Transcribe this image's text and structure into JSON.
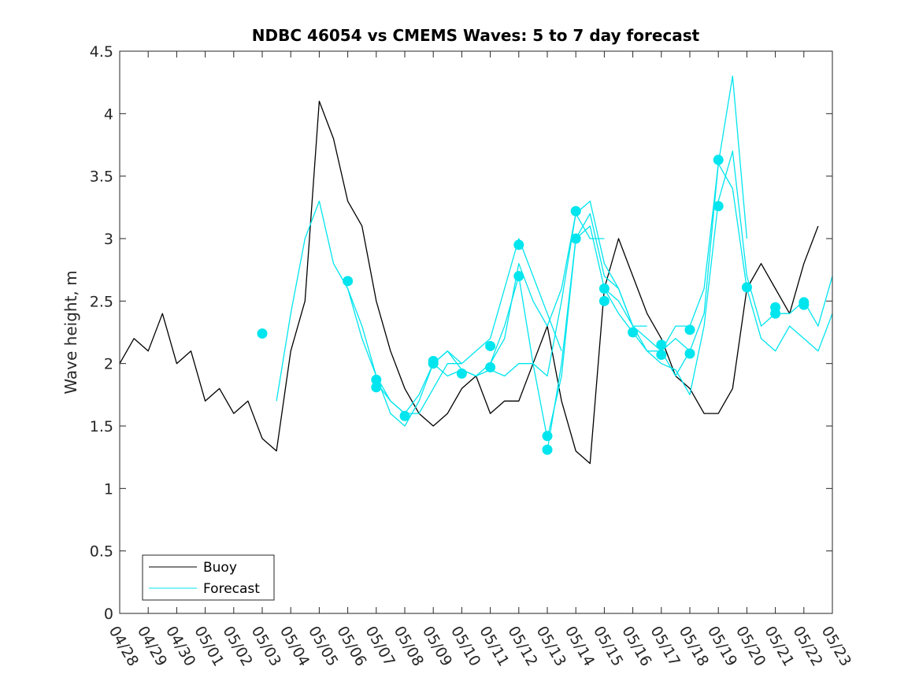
{
  "chart_data": {
    "type": "line",
    "title": "NDBC 46054 vs CMEMS Waves: 5 to 7 day forecast",
    "xlabel": "",
    "ylabel": "Wave height, m",
    "ylim": [
      0,
      4.5
    ],
    "yticks": [
      0,
      0.5,
      1,
      1.5,
      2,
      2.5,
      3,
      3.5,
      4,
      4.5
    ],
    "ytick_labels": [
      "0",
      "0.5",
      "1",
      "1.5",
      "2",
      "2.5",
      "3",
      "3.5",
      "4",
      "4.5"
    ],
    "xlim": [
      "04/28",
      "05/23"
    ],
    "xtick_labels": [
      "04/28",
      "04/29",
      "04/30",
      "05/01",
      "05/02",
      "05/03",
      "05/04",
      "05/05",
      "05/06",
      "05/07",
      "05/08",
      "05/09",
      "05/10",
      "05/11",
      "05/12",
      "05/13",
      "05/14",
      "05/15",
      "05/16",
      "05/17",
      "05/18",
      "05/19",
      "05/20",
      "05/21",
      "05/22",
      "05/23"
    ],
    "grid": false,
    "legend": {
      "position": "bottom-left",
      "entries": [
        {
          "label": "Buoy",
          "color": "#000000"
        },
        {
          "label": "Forecast",
          "color": "#00e5ee"
        }
      ]
    },
    "series": [
      {
        "name": "Buoy",
        "color": "#000000",
        "x": [
          "04/28",
          "04/28 12:00",
          "04/29",
          "04/29 12:00",
          "04/30",
          "04/30 12:00",
          "05/01",
          "05/01 12:00",
          "05/02",
          "05/02 12:00",
          "05/03",
          "05/03 12:00",
          "05/04",
          "05/04 12:00",
          "05/05",
          "05/05 12:00",
          "05/06",
          "05/06 12:00",
          "05/07",
          "05/07 12:00",
          "05/08",
          "05/08 12:00",
          "05/09",
          "05/09 12:00",
          "05/10",
          "05/10 12:00",
          "05/11",
          "05/11 12:00",
          "05/12",
          "05/12 12:00",
          "05/13",
          "05/13 12:00",
          "05/14",
          "05/14 12:00",
          "05/15",
          "05/15 12:00",
          "05/16",
          "05/16 12:00",
          "05/17",
          "05/17 12:00",
          "05/18",
          "05/18 12:00",
          "05/19",
          "05/19 12:00",
          "05/20",
          "05/20 12:00",
          "05/21",
          "05/21 12:00",
          "05/22",
          "05/22 12:00"
        ],
        "y": [
          2.0,
          2.2,
          2.1,
          2.4,
          2.0,
          2.1,
          1.7,
          1.8,
          1.6,
          1.7,
          1.4,
          1.3,
          2.1,
          2.5,
          4.1,
          3.8,
          3.3,
          3.1,
          2.5,
          2.1,
          1.8,
          1.6,
          1.5,
          1.6,
          1.8,
          1.9,
          1.6,
          1.7,
          1.7,
          2.0,
          2.3,
          1.7,
          1.3,
          1.2,
          2.6,
          3.0,
          2.7,
          2.4,
          2.2,
          1.9,
          1.8,
          1.6,
          1.6,
          1.8,
          2.6,
          2.8,
          2.6,
          2.4,
          2.8,
          3.1
        ]
      },
      {
        "name": "",
        "color": "#00e5ee",
        "x": [
          "05/03 12:00",
          "05/04",
          "05/04 12:00",
          "05/05",
          "05/05 12:00",
          "05/06",
          "05/06 12:00",
          "05/07",
          "05/07 12:00",
          "05/08",
          "05/08 12:00",
          "05/09",
          "05/09 12:00",
          "05/10"
        ],
        "y": [
          1.7,
          2.4,
          3.0,
          3.3,
          2.8,
          2.6,
          2.2,
          1.9,
          1.6,
          1.5,
          1.7,
          2.0,
          2.1,
          2.0
        ]
      },
      {
        "name": "",
        "color": "#00e5ee",
        "x": [
          "05/06",
          "05/06 12:00",
          "05/07",
          "05/07 12:00",
          "05/08",
          "05/08 12:00",
          "05/09",
          "05/09 12:00",
          "05/10",
          "05/10 12:00",
          "05/11",
          "05/11 12:00",
          "05/12",
          "05/12 12:00",
          "05/13",
          "05/13 12:00"
        ],
        "y": [
          2.6,
          2.3,
          1.9,
          1.7,
          1.6,
          1.6,
          1.8,
          2.0,
          2.0,
          2.1,
          2.2,
          2.6,
          3.0,
          2.7,
          2.4,
          2.1
        ]
      },
      {
        "name": "",
        "color": "#00e5ee",
        "x": [
          "05/07",
          "05/07 12:00",
          "05/08",
          "05/08 12:00",
          "05/09",
          "05/09 12:00",
          "05/10",
          "05/10 12:00",
          "05/11",
          "05/11 12:00",
          "05/12",
          "05/12 12:00",
          "05/13",
          "05/13 12:00",
          "05/14",
          "05/14 12:00",
          "05/15"
        ],
        "y": [
          1.85,
          1.7,
          1.6,
          1.75,
          2.0,
          2.1,
          1.95,
          1.9,
          2.0,
          2.2,
          2.8,
          2.5,
          2.3,
          2.6,
          3.2,
          3.0,
          3.0
        ]
      },
      {
        "name": "",
        "color": "#00e5ee",
        "x": [
          "05/09",
          "05/09 12:00",
          "05/10",
          "05/10 12:00",
          "05/11",
          "05/11 12:00",
          "05/12",
          "05/12 12:00",
          "05/13",
          "05/13 12:00",
          "05/14",
          "05/14 12:00",
          "05/15",
          "05/15 12:00",
          "05/16",
          "05/16 12:00"
        ],
        "y": [
          2.0,
          1.9,
          1.95,
          1.9,
          1.95,
          1.9,
          2.0,
          2.0,
          1.9,
          2.5,
          3.2,
          3.3,
          2.8,
          2.6,
          2.3,
          2.3
        ]
      },
      {
        "name": "",
        "color": "#00e5ee",
        "x": [
          "05/11",
          "05/11 12:00",
          "05/12",
          "05/12 12:00",
          "05/13",
          "05/13 12:00",
          "05/14",
          "05/14 12:00",
          "05/15",
          "05/15 12:00",
          "05/16",
          "05/16 12:00",
          "05/17",
          "05/17 12:00",
          "05/18"
        ],
        "y": [
          2.0,
          2.3,
          2.7,
          2.0,
          1.4,
          1.9,
          3.0,
          3.2,
          2.7,
          2.6,
          2.3,
          2.2,
          2.1,
          2.2,
          2.1
        ]
      },
      {
        "name": "",
        "color": "#00e5ee",
        "x": [
          "05/13",
          "05/13 12:00",
          "05/14",
          "05/14 12:00",
          "05/15",
          "05/15 12:00",
          "05/16",
          "05/16 12:00",
          "05/17",
          "05/17 12:00",
          "05/18",
          "05/18 12:00",
          "05/19",
          "05/19 12:00",
          "05/20"
        ],
        "y": [
          1.3,
          2.0,
          3.0,
          3.1,
          2.6,
          2.5,
          2.3,
          2.1,
          2.1,
          2.3,
          2.3,
          2.6,
          3.6,
          4.3,
          3.0
        ]
      },
      {
        "name": "",
        "color": "#00e5ee",
        "x": [
          "05/15",
          "05/15 12:00",
          "05/16",
          "05/16 12:00",
          "05/17",
          "05/17 12:00",
          "05/18",
          "05/18 12:00",
          "05/19",
          "05/19 12:00",
          "05/20",
          "05/20 12:00",
          "05/21",
          "05/21 12:00",
          "05/22",
          "05/22 12:00",
          "05/23"
        ],
        "y": [
          2.6,
          2.4,
          2.25,
          2.1,
          2.0,
          1.95,
          1.75,
          2.3,
          3.3,
          3.7,
          2.7,
          2.3,
          2.4,
          2.4,
          2.5,
          2.3,
          2.7
        ]
      },
      {
        "name": "",
        "color": "#00e5ee",
        "x": [
          "05/17",
          "05/17 12:00",
          "05/18",
          "05/18 12:00",
          "05/19",
          "05/19 12:00",
          "05/20",
          "05/20 12:00",
          "05/21",
          "05/21 12:00",
          "05/22",
          "05/22 12:00",
          "05/23"
        ],
        "y": [
          2.1,
          1.9,
          2.1,
          2.4,
          3.6,
          3.4,
          2.6,
          2.2,
          2.1,
          2.3,
          2.2,
          2.1,
          2.4
        ]
      }
    ],
    "markers": {
      "color": "#00e5ee",
      "points": [
        [
          "05/03",
          2.24
        ],
        [
          "05/06",
          2.66
        ],
        [
          "05/07",
          1.87
        ],
        [
          "05/07",
          1.81
        ],
        [
          "05/08",
          1.58
        ],
        [
          "05/09",
          2.02
        ],
        [
          "05/09",
          2.0
        ],
        [
          "05/10",
          1.92
        ],
        [
          "05/11",
          2.14
        ],
        [
          "05/11",
          1.97
        ],
        [
          "05/12",
          2.95
        ],
        [
          "05/12",
          2.7
        ],
        [
          "05/13",
          1.42
        ],
        [
          "05/13",
          1.31
        ],
        [
          "05/14",
          3.22
        ],
        [
          "05/14",
          3.0
        ],
        [
          "05/15",
          2.6
        ],
        [
          "05/15",
          2.5
        ],
        [
          "05/16",
          2.25
        ],
        [
          "05/17",
          2.15
        ],
        [
          "05/17",
          2.07
        ],
        [
          "05/18",
          2.27
        ],
        [
          "05/18",
          2.08
        ],
        [
          "05/19",
          3.63
        ],
        [
          "05/19",
          3.26
        ],
        [
          "05/20",
          2.61
        ],
        [
          "05/21",
          2.45
        ],
        [
          "05/21",
          2.4
        ],
        [
          "05/22",
          2.49
        ],
        [
          "05/22",
          2.47
        ]
      ]
    }
  }
}
